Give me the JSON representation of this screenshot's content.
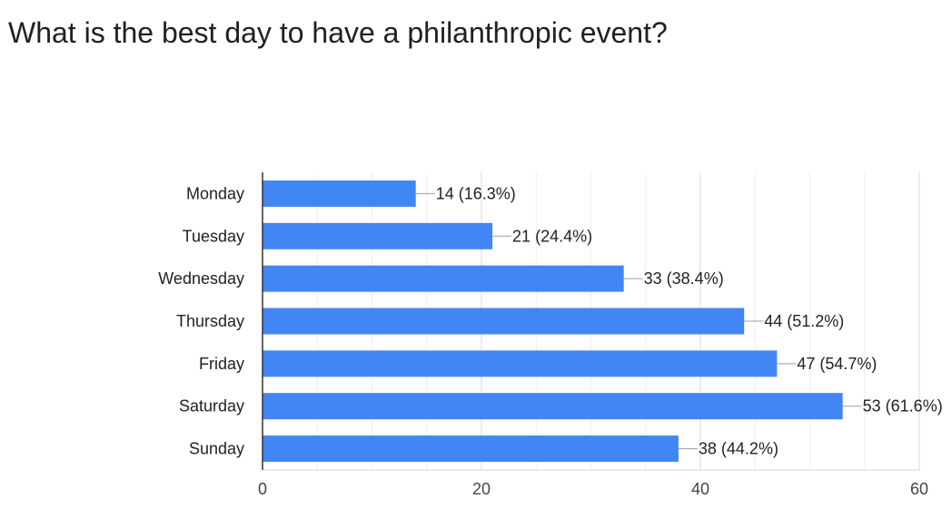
{
  "chart_data": {
    "type": "bar",
    "orientation": "horizontal",
    "title": "What is the best day to have a philanthropic event?",
    "categories": [
      "Monday",
      "Tuesday",
      "Wednesday",
      "Thursday",
      "Friday",
      "Saturday",
      "Sunday"
    ],
    "values": [
      14,
      21,
      33,
      44,
      47,
      53,
      38
    ],
    "data_labels": [
      "14 (16.3%)",
      "21 (24.4%)",
      "33 (38.4%)",
      "44 (51.2%)",
      "47 (54.7%)",
      "53 (61.6%)",
      "38 (44.2%)"
    ],
    "xlim": [
      0,
      60
    ],
    "xticks": [
      "0",
      "20",
      "40",
      "60"
    ],
    "xlabel": "",
    "ylabel": "",
    "grid": true,
    "legend": "none",
    "bar_color": "#4285f4"
  }
}
